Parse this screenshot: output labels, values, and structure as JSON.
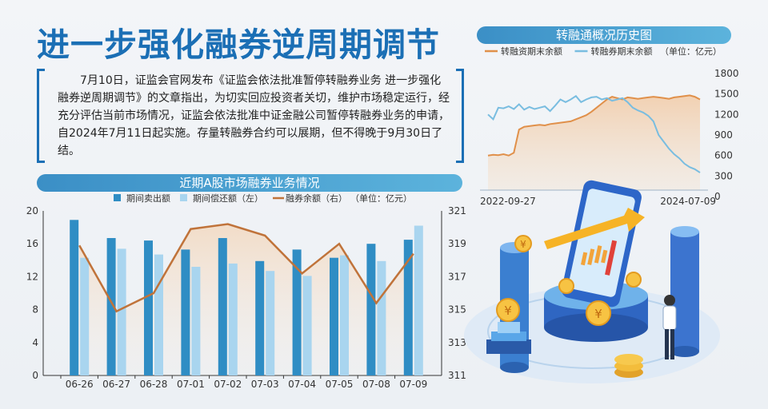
{
  "headline": "进一步强化融券逆周期调节",
  "intro": "7月10日，证监会官网发布《证监会依法批准暂停转融券业务 进一步强化融券逆周期调节》的文章指出，为切实回应投资者关切，维护市场稳定运行，经充分评估当前市场情况，证监会依法批准中证金融公司暂停转融券业务的申请，自2024年7月11日起实施。存量转融券合约可以展期，但不得晚于9月30日了结。",
  "colors": {
    "accent": "#1b6fb5",
    "bar_dark": "#2f8dc4",
    "bar_light": "#a9d5ef",
    "balance_line": "#c0733a",
    "hist_orange": "#e0904a",
    "hist_blue": "#79bde0"
  },
  "chart_data": [
    {
      "type": "line",
      "title": "转融通概况历史图",
      "legend_placement": "top",
      "unit_note": "（单位：亿元）",
      "x_tick_labels": [
        "2022-09-27",
        "2024-07-09"
      ],
      "y_right_ticks": [
        1800,
        1500,
        1200,
        900,
        600,
        300,
        0
      ],
      "ylim": [
        0,
        1800
      ],
      "grid": false,
      "series": [
        {
          "name": "转融资期末余额",
          "color": "#e0904a",
          "values": [
            600,
            610,
            605,
            620,
            600,
            640,
            980,
            1020,
            1030,
            1040,
            1050,
            1040,
            1060,
            1070,
            1080,
            1090,
            1100,
            1130,
            1160,
            1190,
            1240,
            1300,
            1360,
            1420,
            1460,
            1440,
            1420,
            1450,
            1440,
            1430,
            1440,
            1450,
            1460,
            1450,
            1440,
            1430,
            1450,
            1460,
            1470,
            1480,
            1460,
            1420
          ]
        },
        {
          "name": "转融券期末余额",
          "color": "#79bde0",
          "values": [
            1200,
            1130,
            1300,
            1290,
            1320,
            1280,
            1350,
            1270,
            1310,
            1280,
            1300,
            1320,
            1250,
            1330,
            1420,
            1380,
            1420,
            1470,
            1380,
            1420,
            1450,
            1460,
            1420,
            1440,
            1400,
            1420,
            1440,
            1380,
            1300,
            1260,
            1230,
            1180,
            1100,
            900,
            800,
            700,
            620,
            560,
            480,
            430,
            400,
            350
          ]
        }
      ]
    },
    {
      "type": "bar",
      "title": "近期A股市场融券业务情况",
      "legend_placement": "top",
      "unit_note": "（单位：亿元）",
      "categories": [
        "06-26",
        "06-27",
        "06-28",
        "07-01",
        "07-02",
        "07-03",
        "07-04",
        "07-05",
        "07-08",
        "07-09"
      ],
      "y_left_ticks": [
        20,
        16,
        12,
        8,
        4,
        0
      ],
      "y_right_ticks": [
        321,
        319,
        317,
        315,
        313,
        311
      ],
      "ylim": [
        0,
        20
      ],
      "y2lim": [
        311,
        321
      ],
      "grid": false,
      "series": [
        {
          "name": "期间卖出额",
          "axis": "left",
          "values": [
            18.9,
            16.7,
            16.4,
            15.3,
            16.7,
            13.9,
            15.3,
            14.3,
            16.0,
            16.5
          ]
        },
        {
          "name": "期间偿还额（左）",
          "axis": "left",
          "values": [
            14.3,
            15.4,
            14.7,
            13.2,
            13.6,
            12.7,
            12.1,
            14.6,
            13.9,
            18.2
          ]
        },
        {
          "name": "融券余额（右）",
          "axis": "right",
          "type": "line",
          "values": [
            318.9,
            314.9,
            316.0,
            319.9,
            320.2,
            319.5,
            317.2,
            319.0,
            315.4,
            318.4
          ]
        }
      ]
    }
  ]
}
